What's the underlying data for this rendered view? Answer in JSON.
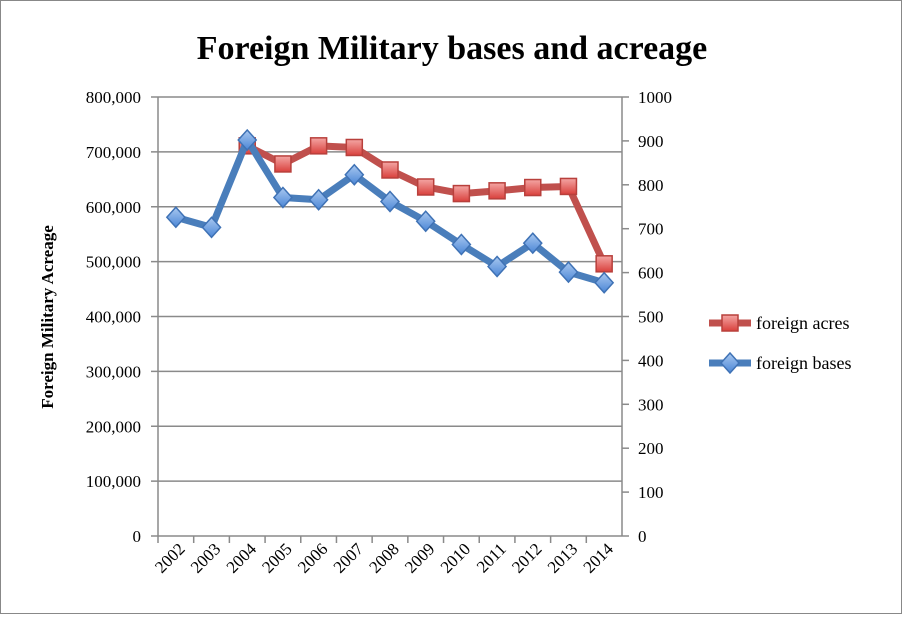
{
  "chart_data": {
    "type": "line",
    "title": "Foreign Military bases and acreage",
    "xlabel": "",
    "ylabel": "Foreign Military Acreage",
    "y2label": "",
    "x": [
      "2002",
      "2003",
      "2004",
      "2005",
      "2006",
      "2007",
      "2008",
      "2009",
      "2010",
      "2011",
      "2012",
      "2013",
      "2014"
    ],
    "ylim": [
      0,
      800000
    ],
    "y2lim": [
      0,
      1000
    ],
    "yticks": [
      "0",
      "100,000",
      "200,000",
      "300,000",
      "400,000",
      "500,000",
      "600,000",
      "700,000",
      "800,000"
    ],
    "y2ticks": [
      "0",
      "100",
      "200",
      "300",
      "400",
      "500",
      "600",
      "700",
      "800",
      "900",
      "1000"
    ],
    "grid": true,
    "legend_position": "right",
    "series": [
      {
        "name": "foreign acres",
        "axis": "left",
        "color": "#c0504d",
        "marker": "square",
        "values": [
          null,
          null,
          711000,
          678000,
          711000,
          708000,
          667000,
          636000,
          624000,
          629000,
          635000,
          637000,
          496000
        ]
      },
      {
        "name": "foreign bases",
        "axis": "right",
        "color": "#4a7ebb",
        "marker": "diamond",
        "values": [
          726,
          703,
          902,
          771,
          766,
          823,
          762,
          717,
          664,
          614,
          667,
          601,
          577
        ]
      }
    ]
  }
}
